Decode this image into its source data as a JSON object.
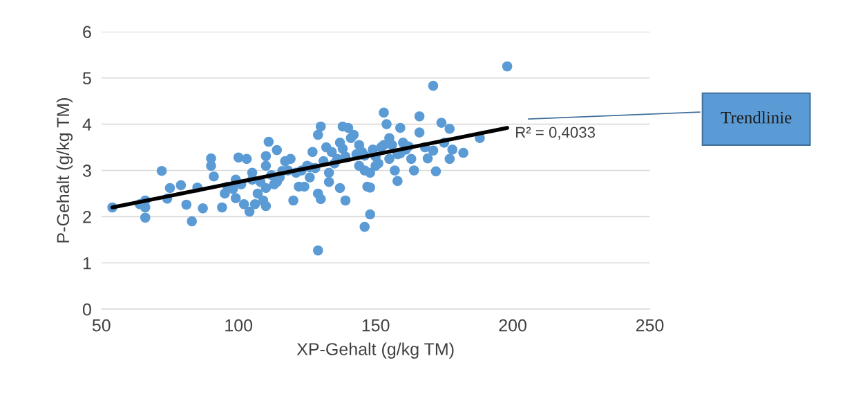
{
  "chart_data": {
    "type": "scatter",
    "xlabel": "XP-Gehalt (g/kg TM)",
    "ylabel": "P-Gehalt (g/kg TM)",
    "xlim": [
      50,
      250
    ],
    "xticks": [
      50,
      100,
      150,
      200,
      250
    ],
    "ylim": [
      0,
      6
    ],
    "yticks": [
      0,
      1,
      2,
      3,
      4,
      5,
      6
    ],
    "grid": "y",
    "series": [
      {
        "color": "#5b9bd5",
        "marker": "circle",
        "x": [
          54,
          64,
          66,
          66,
          66,
          72,
          74,
          75,
          79,
          81,
          83,
          87,
          85,
          90,
          90,
          91,
          94,
          96,
          99,
          100,
          102,
          104,
          106,
          109,
          110,
          110,
          111,
          114,
          103,
          110,
          114,
          116,
          119,
          122,
          120,
          124,
          126,
          127,
          129,
          130,
          129,
          129,
          130,
          133,
          134,
          136,
          138,
          137,
          139,
          138,
          140,
          142,
          144,
          144,
          146,
          147,
          148,
          146,
          148,
          148,
          150,
          153,
          153,
          154,
          155,
          157,
          158,
          159,
          159,
          162,
          163,
          164,
          166,
          166,
          169,
          171,
          171,
          172,
          174,
          177,
          177,
          178,
          182,
          188,
          198,
          95,
          98,
          101,
          105,
          108,
          112,
          115,
          118,
          121,
          125,
          128,
          131,
          135,
          139,
          143,
          145,
          149,
          152,
          156,
          160,
          105,
          110,
          117,
          123,
          132,
          137,
          141,
          150,
          155,
          161,
          99,
          107,
          113,
          126,
          133,
          146,
          151,
          158,
          168,
          175
        ],
        "values": [
          2.2,
          2.27,
          2.2,
          1.98,
          2.35,
          2.99,
          2.39,
          2.62,
          2.68,
          2.26,
          1.9,
          2.18,
          2.63,
          3.26,
          3.1,
          2.87,
          2.2,
          2.65,
          2.8,
          3.28,
          2.27,
          2.11,
          2.27,
          2.35,
          2.23,
          3.31,
          3.62,
          3.44,
          3.25,
          2.62,
          2.75,
          2.99,
          3.25,
          2.65,
          2.35,
          2.65,
          3.07,
          3.4,
          3.77,
          3.95,
          2.5,
          1.27,
          2.38,
          2.95,
          3.4,
          3.25,
          3.47,
          2.62,
          2.35,
          3.95,
          3.92,
          3.77,
          3.1,
          3.55,
          3.32,
          2.65,
          2.95,
          1.78,
          2.05,
          2.63,
          3.1,
          4.25,
          3.55,
          4.0,
          3.25,
          3.0,
          2.77,
          3.92,
          3.37,
          3.52,
          3.25,
          3.0,
          4.17,
          3.82,
          3.26,
          4.83,
          3.43,
          2.98,
          4.03,
          3.9,
          3.25,
          3.45,
          3.38,
          3.7,
          5.25,
          2.5,
          2.6,
          2.7,
          2.8,
          2.75,
          2.9,
          2.85,
          3.0,
          2.95,
          3.1,
          3.05,
          3.2,
          3.15,
          3.3,
          3.35,
          3.4,
          3.45,
          3.5,
          3.55,
          3.6,
          2.95,
          3.1,
          3.2,
          3.0,
          3.5,
          3.6,
          3.7,
          3.3,
          3.7,
          3.45,
          2.4,
          2.5,
          2.7,
          2.85,
          2.75,
          3.0,
          3.15,
          3.35,
          3.5,
          3.6
        ]
      },
      {
        "type": "line",
        "marker": "none",
        "color": "#000000",
        "x": [
          54,
          198
        ],
        "values": [
          2.2,
          3.92
        ]
      }
    ],
    "annotations": [
      {
        "text": "R² = 0,4033",
        "x": 198,
        "y": 3.92
      },
      "Trendlinie"
    ]
  }
}
